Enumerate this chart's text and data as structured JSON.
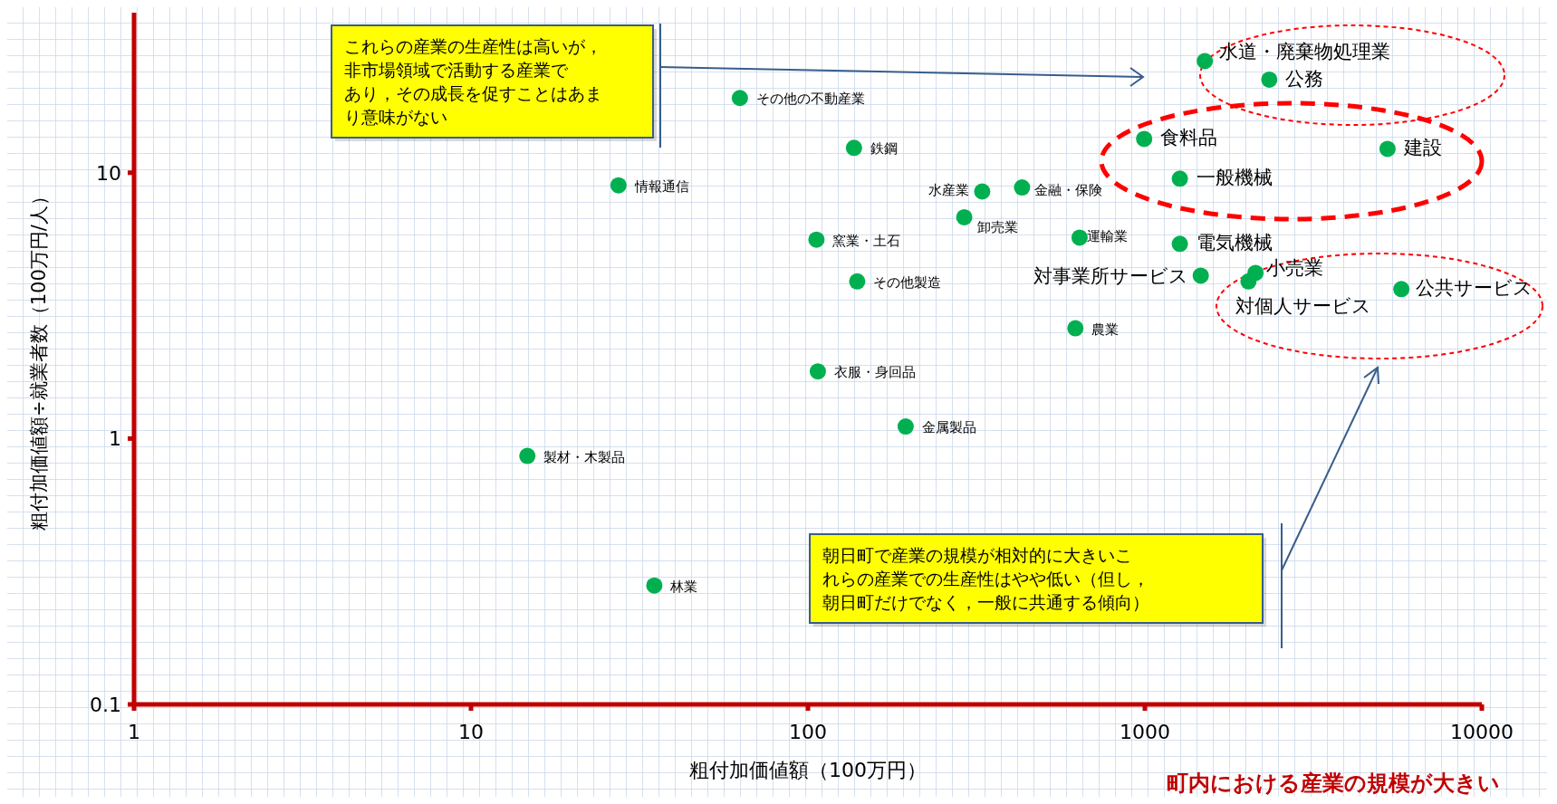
{
  "chart_data": {
    "type": "scatter",
    "xlabel": "粗付加価値額（100万円）",
    "ylabel": "粗付加価値額÷就業者数（100万円/人）",
    "log": "xy",
    "marker": "circle",
    "grid": false,
    "xlim": [
      1,
      10000
    ],
    "xticks": [
      1,
      10,
      100,
      1000,
      10000
    ],
    "ylim": [
      0.1,
      40
    ],
    "yticks": [
      0.1,
      1,
      10
    ],
    "series": [
      {
        "color": "#00b050",
        "x": [
          62.8,
          137,
          27.4,
          329,
          432,
          291,
          106,
          640,
          1270,
          1465,
          2130,
          2030,
          5770,
          140,
          622,
          107,
          195,
          14.7,
          35,
          1506,
          2340,
          995,
          5250,
          1270
        ],
        "values": [
          19.1,
          12.4,
          8.97,
          8.5,
          8.8,
          6.8,
          5.6,
          5.7,
          5.4,
          4.1,
          4.2,
          3.9,
          3.65,
          3.9,
          2.6,
          1.79,
          1.11,
          0.86,
          0.28,
          26.3,
          22.4,
          13.4,
          12.3,
          9.5
        ]
      }
    ],
    "annotations": [
      {
        "text": "その他の不動産業",
        "x": 62.8,
        "y": 19.1
      },
      {
        "text": "鉄鋼",
        "x": 137,
        "y": 12.4
      },
      {
        "text": "情報通信",
        "x": 27.4,
        "y": 8.97
      },
      {
        "text": "水産業",
        "x": 329,
        "y": 8.5
      },
      {
        "text": "金融・保険",
        "x": 432,
        "y": 8.8
      },
      {
        "text": "卸売業",
        "x": 291,
        "y": 6.8
      },
      {
        "text": "窯業・土石",
        "x": 106,
        "y": 5.6
      },
      {
        "text": "運輸業",
        "x": 640,
        "y": 5.7
      },
      {
        "text": "電気機械",
        "x": 1270,
        "y": 5.4
      },
      {
        "text": "対事業所サービス",
        "x": 1465,
        "y": 4.1
      },
      {
        "text": "小売業",
        "x": 2130,
        "y": 4.2
      },
      {
        "text": "対個人サービス",
        "x": 2030,
        "y": 3.9
      },
      {
        "text": "公共サービス",
        "x": 5770,
        "y": 3.65
      },
      {
        "text": "その他製造",
        "x": 140,
        "y": 3.9
      },
      {
        "text": "農業",
        "x": 622,
        "y": 2.6
      },
      {
        "text": "衣服・身回品",
        "x": 107,
        "y": 1.79
      },
      {
        "text": "金属製品",
        "x": 195,
        "y": 1.11
      },
      {
        "text": "製材・木製品",
        "x": 14.7,
        "y": 0.86
      },
      {
        "text": "林業",
        "x": 35,
        "y": 0.28
      },
      {
        "text": "水道・廃棄物処理業",
        "x": 1506,
        "y": 26.3
      },
      {
        "text": "公務",
        "x": 2340,
        "y": 22.4
      },
      {
        "text": "食料品",
        "x": 995,
        "y": 13.4
      },
      {
        "text": "建設",
        "x": 5250,
        "y": 12.3
      },
      {
        "text": "一般機械",
        "x": 1270,
        "y": 9.5
      },
      "これらの産業の生産性は高いが，非市場領域で活動する産業であり，その成長を促すことはあまり意味がない",
      "朝日町で産業の規模が相対的に大きいこれらの産業での生産性はやや低い（但し，朝日町だけでなく，一般に共通する傾向）",
      "町内における産業の規模が大きい"
    ]
  }
}
